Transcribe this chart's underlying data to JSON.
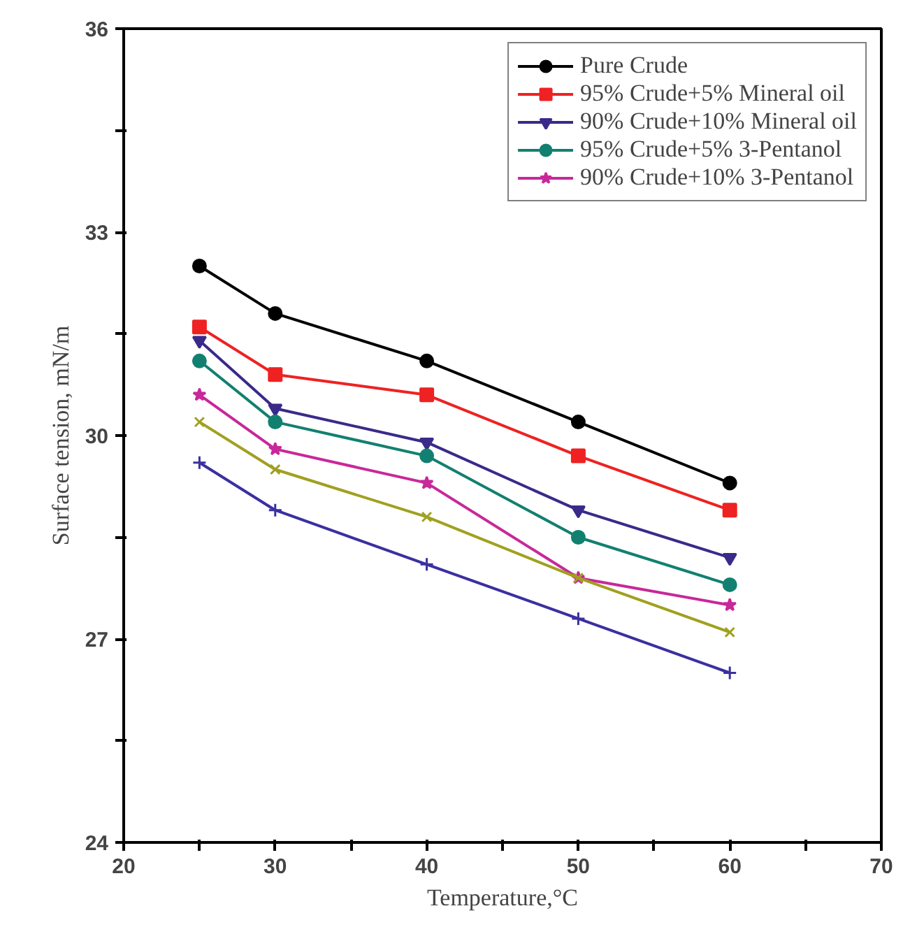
{
  "chart_data": {
    "type": "line",
    "xlabel": "Temperature,°C",
    "ylabel": "Surface tension, mN/m",
    "x": [
      25,
      30,
      40,
      50,
      60
    ],
    "xlim": [
      20,
      70
    ],
    "xticks": [
      20,
      {
        "value": 25,
        "label": null
      },
      30,
      {
        "value": 35,
        "label": null
      },
      40,
      {
        "value": 45,
        "label": null
      },
      50,
      {
        "value": 55,
        "label": null
      },
      60,
      {
        "value": 65,
        "label": null
      },
      70
    ],
    "ylim": [
      24,
      36
    ],
    "yticks": [
      24,
      {
        "value": 25.5,
        "label": null
      },
      27,
      {
        "value": 28.5,
        "label": null
      },
      30,
      {
        "value": 31.5,
        "label": null
      },
      33,
      {
        "value": 34.5,
        "label": null
      },
      36
    ],
    "grid": false,
    "legend": "top right",
    "line_style": "solid",
    "series": [
      {
        "name": "Pure Crude",
        "color": "#000000",
        "marker": "circle",
        "values": [
          32.5,
          31.8,
          31.1,
          30.2,
          29.3
        ]
      },
      {
        "name": "95% Crude+5% Mineral oil",
        "color": "#ee2222",
        "marker": "square",
        "values": [
          31.6,
          30.9,
          30.6,
          29.7,
          28.9
        ]
      },
      {
        "name": "90% Crude+10% Mineral oil",
        "color": "#3a2a8a",
        "marker": "triangle",
        "values": [
          31.4,
          30.4,
          29.9,
          28.9,
          28.2
        ]
      },
      {
        "name": "95% Crude+5% 3-Pentanol",
        "color": "#128070",
        "marker": "circle",
        "values": [
          31.1,
          30.2,
          29.7,
          28.5,
          27.8
        ]
      },
      {
        "name": "90% Crude+10% 3-Pentanol",
        "color": "#c8289a",
        "marker": "star",
        "values": [
          30.6,
          29.8,
          29.3,
          27.9,
          27.5
        ]
      },
      {
        "name": null,
        "color": "#a0a020",
        "marker": "cross",
        "values": [
          30.2,
          29.5,
          28.8,
          27.9,
          27.1
        ]
      },
      {
        "name": null,
        "color": "#3a30a0",
        "marker": "plus",
        "values": [
          29.6,
          28.9,
          28.1,
          27.3,
          26.5
        ]
      }
    ]
  }
}
